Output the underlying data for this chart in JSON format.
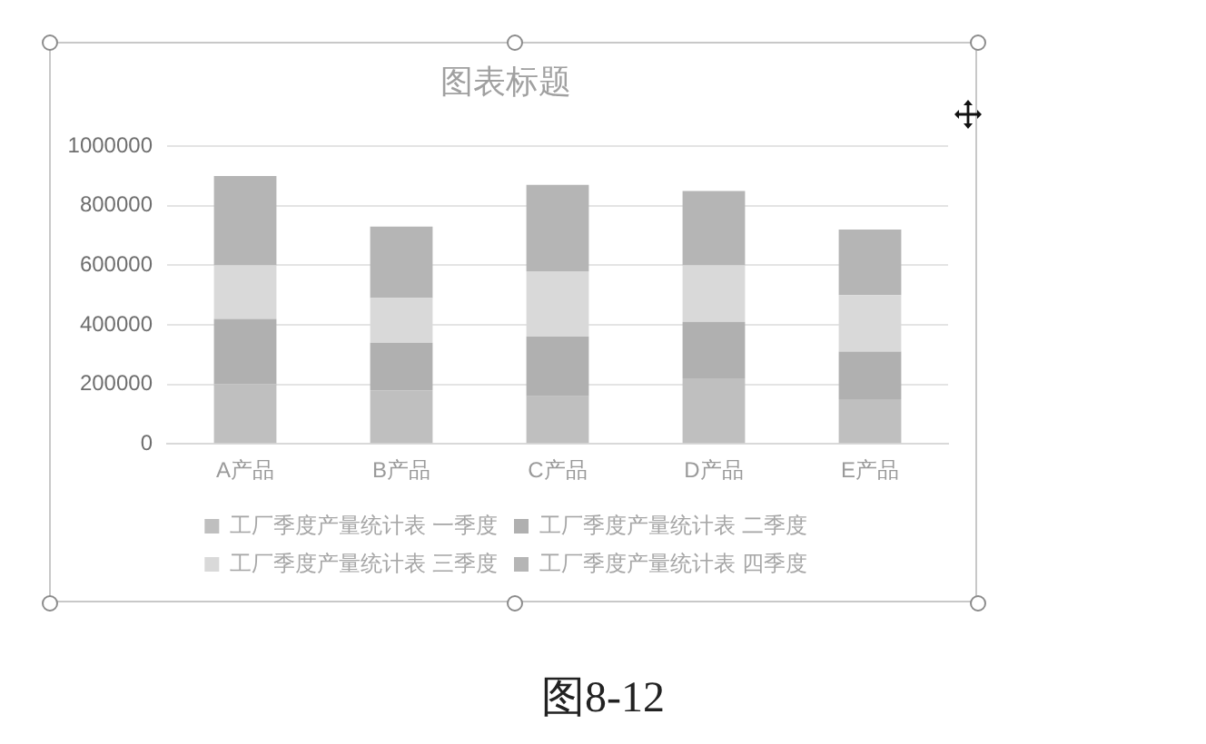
{
  "chart_data": {
    "type": "bar",
    "title": "图表标题",
    "categories": [
      "A产品",
      "B产品",
      "C产品",
      "D产品",
      "E产品"
    ],
    "series": [
      {
        "name": "工厂季度产量统计表 一季度",
        "color": "#bfbfbf",
        "values": [
          200000,
          180000,
          160000,
          220000,
          150000
        ]
      },
      {
        "name": "工厂季度产量统计表 二季度",
        "color": "#b0b0b0",
        "values": [
          220000,
          160000,
          200000,
          190000,
          160000
        ]
      },
      {
        "name": "工厂季度产量统计表 三季度",
        "color": "#d9d9d9",
        "values": [
          180000,
          150000,
          220000,
          190000,
          190000
        ]
      },
      {
        "name": "工厂季度产量统计表 四季度",
        "color": "#b5b5b5",
        "values": [
          300000,
          240000,
          290000,
          250000,
          220000
        ]
      }
    ],
    "stacked": true,
    "ylim": [
      0,
      1000000
    ],
    "yticks": [
      0,
      200000,
      400000,
      600000,
      800000,
      1000000
    ],
    "grid": "y",
    "legend": "bottom",
    "annotations": [
      "图8-12"
    ]
  }
}
